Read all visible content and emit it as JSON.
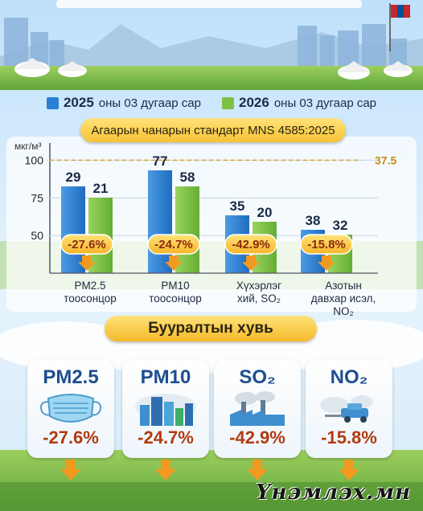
{
  "chart_data": {
    "type": "bar",
    "legend": [
      {
        "year": "2025",
        "text": "оны 03 дугаар сар",
        "color": "#2b7fd4"
      },
      {
        "year": "2026",
        "text": "оны 03 дугаар сар",
        "color": "#7cc242"
      }
    ],
    "title": "Агаарын чанарын стандарт MNS 4585:2025",
    "ylabel": "мкг/м³",
    "ylim": [
      25,
      105
    ],
    "yticks": [
      50,
      75,
      100
    ],
    "reference_line": {
      "value": 37.5,
      "label": "37.5"
    },
    "categories": [
      {
        "name": "PM2.5",
        "sub": "тоосонцор"
      },
      {
        "name": "PM10",
        "sub": "тоосонцор"
      },
      {
        "name": "Хүхэрлэг",
        "sub": "хий, SO₂"
      },
      {
        "name": "Азотын",
        "sub": "давхар исэл,",
        "sub2": "NO₂"
      }
    ],
    "series": [
      {
        "name": "2025",
        "values": [
          29,
          77,
          35,
          38
        ]
      },
      {
        "name": "2026",
        "values": [
          21,
          58,
          20,
          32
        ]
      }
    ],
    "changes": [
      "-27.6%",
      "-24.7%",
      "-42.9%",
      "-15.8%"
    ]
  },
  "reduction": {
    "title": "Бууралтын хувь",
    "cards": [
      {
        "title": "PM2.5",
        "pct": "-27.6%",
        "icon": "mask-icon"
      },
      {
        "title": "PM10",
        "pct": "-24.7%",
        "icon": "city-icon"
      },
      {
        "title": "SO₂",
        "pct": "-42.9%",
        "icon": "factory-icon"
      },
      {
        "title": "NO₂",
        "pct": "-15.8%",
        "icon": "car-exhaust-icon"
      }
    ]
  },
  "brand": {
    "logo": "Үнэмлэх.мн"
  },
  "colors": {
    "blue": "#2b7fd4",
    "green": "#7cc242",
    "orange": "#f29a1f",
    "banner": "#f7c234"
  }
}
